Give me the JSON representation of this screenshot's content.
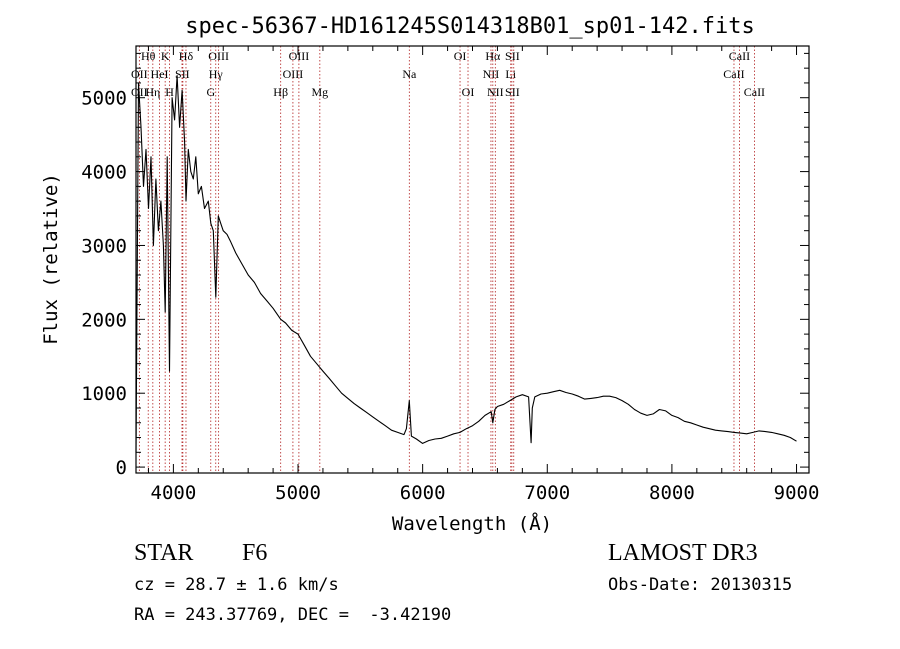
{
  "chart_data": {
    "type": "line",
    "title": "spec-56367-HD161245S014318B01_sp01-142.fits",
    "xlabel": "Wavelength (Å)",
    "ylabel": "Flux (relative)",
    "xlim": [
      3700,
      9100
    ],
    "ylim": [
      -80,
      5700
    ],
    "x_ticks": [
      4000,
      5000,
      6000,
      7000,
      8000,
      9000
    ],
    "x_tick_labels": [
      "4000",
      "5000",
      "6000",
      "7000",
      "8000",
      "9000"
    ],
    "y_ticks": [
      0,
      1000,
      2000,
      3000,
      4000,
      5000
    ],
    "y_tick_labels": [
      "0",
      "1000",
      "2000",
      "3000",
      "4000",
      "5000"
    ],
    "grid": false,
    "series": [
      {
        "color": "#000000",
        "x": [
          3700,
          3720,
          3740,
          3760,
          3780,
          3800,
          3820,
          3840,
          3860,
          3880,
          3900,
          3920,
          3934,
          3950,
          3969,
          3990,
          4010,
          4030,
          4050,
          4070,
          4090,
          4101,
          4120,
          4140,
          4160,
          4180,
          4200,
          4225,
          4250,
          4280,
          4300,
          4320,
          4340,
          4360,
          4380,
          4400,
          4430,
          4460,
          4500,
          4550,
          4600,
          4650,
          4700,
          4750,
          4800,
          4861,
          4900,
          4950,
          5000,
          5050,
          5100,
          5150,
          5200,
          5250,
          5300,
          5350,
          5400,
          5450,
          5500,
          5550,
          5600,
          5650,
          5700,
          5750,
          5800,
          5850,
          5870,
          5893,
          5910,
          5950,
          6000,
          6050,
          6100,
          6150,
          6200,
          6250,
          6300,
          6350,
          6400,
          6450,
          6500,
          6550,
          6563,
          6580,
          6600,
          6650,
          6700,
          6750,
          6800,
          6850,
          6870,
          6880,
          6900,
          6950,
          7000,
          7050,
          7100,
          7150,
          7200,
          7250,
          7300,
          7350,
          7400,
          7450,
          7500,
          7550,
          7600,
          7650,
          7700,
          7750,
          7800,
          7850,
          7900,
          7950,
          8000,
          8050,
          8100,
          8150,
          8200,
          8250,
          8300,
          8350,
          8400,
          8450,
          8500,
          8550,
          8600,
          8650,
          8700,
          8750,
          8800,
          8850,
          8900,
          8950,
          9000
        ],
        "y": [
          200,
          5200,
          4600,
          3800,
          4300,
          3500,
          4200,
          3000,
          3900,
          3200,
          3600,
          3000,
          2100,
          4200,
          1300,
          5000,
          4700,
          5300,
          4600,
          5100,
          4400,
          3600,
          4300,
          4000,
          3900,
          4200,
          3700,
          3800,
          3500,
          3600,
          3300,
          3200,
          2300,
          3400,
          3300,
          3200,
          3150,
          3050,
          2900,
          2750,
          2600,
          2500,
          2350,
          2250,
          2150,
          2000,
          1950,
          1850,
          1800,
          1650,
          1500,
          1400,
          1300,
          1200,
          1100,
          1000,
          930,
          860,
          800,
          740,
          680,
          620,
          560,
          500,
          470,
          440,
          520,
          900,
          420,
          380,
          320,
          360,
          380,
          390,
          420,
          450,
          470,
          520,
          560,
          620,
          700,
          750,
          600,
          780,
          820,
          850,
          900,
          950,
          980,
          950,
          330,
          800,
          950,
          990,
          1000,
          1020,
          1040,
          1010,
          990,
          960,
          920,
          930,
          940,
          960,
          960,
          940,
          900,
          850,
          780,
          730,
          700,
          720,
          780,
          760,
          700,
          670,
          620,
          600,
          570,
          540,
          520,
          500,
          490,
          480,
          470,
          460,
          450,
          470,
          490,
          480,
          470,
          450,
          430,
          400,
          350
        ]
      }
    ],
    "spectral_lines": [
      {
        "label": "OII",
        "x": 3727,
        "row": 2,
        "tick_x": [
          3727
        ]
      },
      {
        "label": "OII",
        "x": 3727,
        "row": 3,
        "tick_x": []
      },
      {
        "label": "Hθ",
        "x": 3798,
        "row": 1,
        "tick_x": [
          3798
        ]
      },
      {
        "label": "Hη",
        "x": 3835,
        "row": 3,
        "tick_x": [
          3835
        ]
      },
      {
        "label": "HeI",
        "x": 3889,
        "row": 2,
        "tick_x": [
          3889
        ]
      },
      {
        "label": "K",
        "x": 3934,
        "row": 1,
        "tick_x": [
          3934
        ]
      },
      {
        "label": "H",
        "x": 3969,
        "row": 3,
        "tick_x": [
          3969
        ]
      },
      {
        "label": "SII",
        "x": 4072,
        "row": 2,
        "tick_x": [
          4069,
          4076
        ]
      },
      {
        "label": "Hδ",
        "x": 4101,
        "row": 1,
        "tick_x": [
          4101
        ]
      },
      {
        "label": "G",
        "x": 4300,
        "row": 3,
        "tick_x": [
          4300
        ]
      },
      {
        "label": "Hγ",
        "x": 4340,
        "row": 2,
        "tick_x": [
          4340
        ]
      },
      {
        "label": "OIII",
        "x": 4363,
        "row": 1,
        "tick_x": [
          4363
        ]
      },
      {
        "label": "Hβ",
        "x": 4861,
        "row": 3,
        "tick_x": [
          4861
        ]
      },
      {
        "label": "OIII",
        "x": 4959,
        "row": 2,
        "tick_x": [
          4959
        ]
      },
      {
        "label": "OIII",
        "x": 5007,
        "row": 1,
        "tick_x": [
          5007
        ]
      },
      {
        "label": "Mg",
        "x": 5175,
        "row": 3,
        "tick_x": [
          5175
        ]
      },
      {
        "label": "Na",
        "x": 5893,
        "row": 2,
        "tick_x": [
          5893
        ]
      },
      {
        "label": "OI",
        "x": 6300,
        "row": 1,
        "tick_x": [
          6300
        ]
      },
      {
        "label": "OI",
        "x": 6364,
        "row": 3,
        "tick_x": [
          6364
        ]
      },
      {
        "label": "NII",
        "x": 6548,
        "row": 2,
        "tick_x": [
          6548
        ]
      },
      {
        "label": "Hα",
        "x": 6563,
        "row": 1,
        "tick_x": [
          6563
        ]
      },
      {
        "label": "NII",
        "x": 6583,
        "row": 3,
        "tick_x": [
          6583
        ]
      },
      {
        "label": "Li",
        "x": 6707,
        "row": 2,
        "tick_x": [
          6707
        ]
      },
      {
        "label": "SII",
        "x": 6720,
        "row": 1,
        "tick_x": [
          6716,
          6731
        ]
      },
      {
        "label": "SII",
        "x": 6720,
        "row": 3,
        "tick_x": []
      },
      {
        "label": "CaII",
        "x": 8498,
        "row": 2,
        "tick_x": [
          8498
        ]
      },
      {
        "label": "CaII",
        "x": 8542,
        "row": 1,
        "tick_x": [
          8542
        ]
      },
      {
        "label": "CaII",
        "x": 8662,
        "row": 3,
        "tick_x": [
          8662
        ]
      }
    ]
  },
  "info": {
    "object_class": "STAR",
    "subclass": "F6",
    "survey": "LAMOST DR3",
    "redshift": "cz = 28.7 ± 1.6 km/s",
    "obs_date": "Obs-Date: 20130315",
    "coords": "RA = 243.37769, DEC =  -3.42190"
  }
}
